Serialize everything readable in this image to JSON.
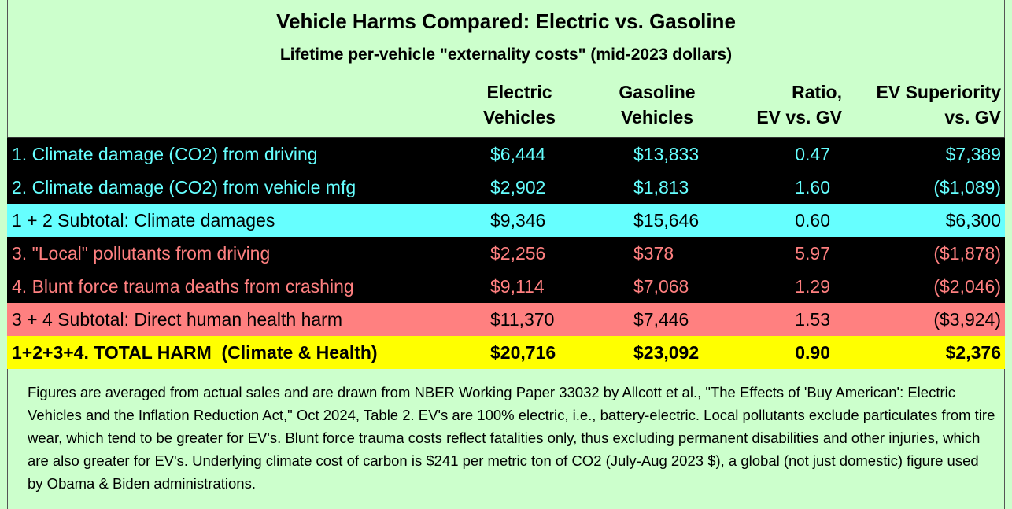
{
  "title": "Vehicle Harms Compared: Electric vs. Gasoline",
  "subtitle": "Lifetime per-vehicle \"externality costs\" (mid-2023 dollars)",
  "columns": {
    "ev": [
      "Electric",
      "Vehicles"
    ],
    "gv": [
      "Gasoline",
      "Vehicles"
    ],
    "ratio": [
      "Ratio,",
      "EV vs. GV"
    ],
    "superiority": [
      "EV Superiority",
      "vs. GV"
    ]
  },
  "rows": [
    {
      "label": "1. Climate damage (CO2) from driving",
      "ev": "$6,444",
      "gv": "$13,833",
      "ratio": "0.47",
      "superiority": "$7,389"
    },
    {
      "label": "2. Climate damage (CO2) from vehicle mfg",
      "ev": "$2,902",
      "gv": "$1,813",
      "ratio": "1.60",
      "superiority": "($1,089)"
    },
    {
      "label": "1 + 2 Subtotal: Climate damages",
      "ev": "$9,346",
      "gv": "$15,646",
      "ratio": "0.60",
      "superiority": "$6,300"
    },
    {
      "label": "3. \"Local\" pollutants from driving",
      "ev": "$2,256",
      "gv": "$378",
      "ratio": "5.97",
      "superiority": "($1,878)"
    },
    {
      "label": "4. Blunt force trauma deaths from crashing",
      "ev": "$9,114",
      "gv": "$7,068",
      "ratio": "1.29",
      "superiority": "($2,046)"
    },
    {
      "label": "3 + 4 Subtotal: Direct human health harm",
      "ev": "$11,370",
      "gv": "$7,446",
      "ratio": "1.53",
      "superiority": "($3,924)"
    },
    {
      "label": "1+2+3+4. TOTAL HARM  (Climate & Health)",
      "ev": "$20,716",
      "gv": "$23,092",
      "ratio": "0.90",
      "superiority": "$2,376"
    }
  ],
  "colors": {
    "background": "#ccffcc",
    "black_row": "#000000",
    "cyan": "#66ffff",
    "pink": "#ff8080",
    "yellow": "#ffff00"
  },
  "footnote": "Figures are averaged from actual sales and are drawn from NBER Working Paper 33032 by Allcott et al., \"The Effects of 'Buy American': Electric Vehicles and the Inflation Reduction Act,\" Oct 2024, Table 2. EV's are 100% electric, i.e., battery-electric. Local pollutants exclude particulates from tire wear, which tend to be greater for EV's. Blunt force trauma costs reflect fatalities only, thus excluding permanent disabilities and other injuries, which are also greater for EV's. Underlying climate cost of carbon is $241 per metric ton of CO2 (July-Aug 2023 $), a global (not just domestic) figure used by Obama & Biden administrations."
}
